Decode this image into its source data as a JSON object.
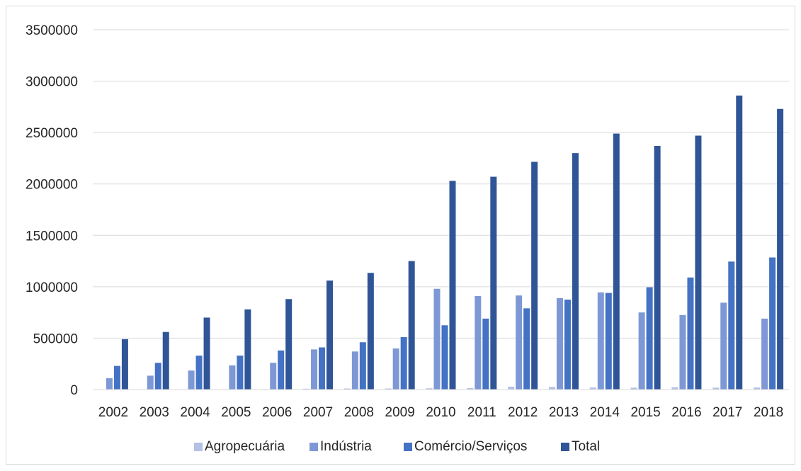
{
  "chart_data": {
    "type": "bar",
    "title": "",
    "xlabel": "",
    "ylabel": "",
    "ylim": [
      0,
      3500000
    ],
    "yticks": [
      "0",
      "500000",
      "1000000",
      "1500000",
      "2000000",
      "2500000",
      "3000000",
      "3500000"
    ],
    "categories": [
      "2002",
      "2003",
      "2004",
      "2005",
      "2006",
      "2007",
      "2008",
      "2009",
      "2010",
      "2011",
      "2012",
      "2013",
      "2014",
      "2015",
      "2016",
      "2017",
      "2018"
    ],
    "grid": true,
    "legend_position": "bottom",
    "series": [
      {
        "name": "Agropecuária",
        "color": "#b4c0e4",
        "values": [
          3000,
          3000,
          4000,
          4000,
          5000,
          8000,
          10000,
          10000,
          12000,
          14000,
          28000,
          25000,
          20000,
          18000,
          22000,
          18000,
          20000
        ]
      },
      {
        "name": "Indústria",
        "color": "#7e98d6",
        "values": [
          110000,
          135000,
          185000,
          235000,
          260000,
          390000,
          370000,
          400000,
          980000,
          910000,
          915000,
          890000,
          945000,
          750000,
          725000,
          845000,
          690000
        ]
      },
      {
        "name": "Comércio/Serviços",
        "color": "#4472c4",
        "values": [
          230000,
          260000,
          330000,
          330000,
          380000,
          410000,
          460000,
          510000,
          625000,
          690000,
          790000,
          875000,
          940000,
          995000,
          1090000,
          1245000,
          1285000
        ]
      },
      {
        "name": "Total",
        "color": "#2f5597",
        "values": [
          490000,
          560000,
          700000,
          780000,
          880000,
          1060000,
          1135000,
          1250000,
          2030000,
          2070000,
          2215000,
          2300000,
          2490000,
          2370000,
          2470000,
          2860000,
          2730000
        ]
      }
    ]
  }
}
